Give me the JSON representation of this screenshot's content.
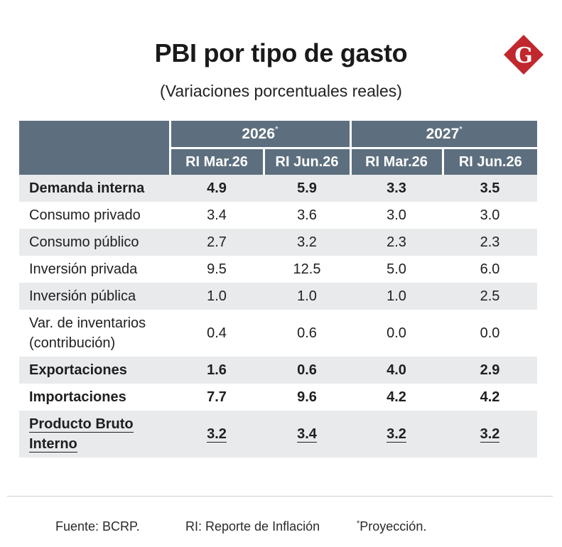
{
  "title": "PBI por tipo de gasto",
  "subtitle": "(Variaciones porcentuales reales)",
  "logo": {
    "letter": "G",
    "color": "#c0282e"
  },
  "colors": {
    "header_bg": "#5d6f7f",
    "header_text": "#ffffff",
    "shade_row": "#e8eaec",
    "text": "#1f1f1f"
  },
  "header": {
    "years": [
      {
        "label": "2026",
        "mark": "*"
      },
      {
        "label": "2027",
        "mark": "*"
      }
    ],
    "columns": [
      "RI Mar.26",
      "RI Jun.26",
      "RI Mar.26",
      "RI Jun.26"
    ]
  },
  "chart_data": {
    "type": "table",
    "title": "PBI por tipo de gasto",
    "subtitle": "(Variaciones porcentuales reales)",
    "column_groups": [
      "2026*",
      "2027*"
    ],
    "columns": [
      "RI Mar.26",
      "RI Jun.26",
      "RI Mar.26",
      "RI Jun.26"
    ],
    "rows": [
      {
        "label": "Demanda interna",
        "values": [
          "4.9",
          "5.9",
          "3.3",
          "3.5"
        ]
      },
      {
        "label": "Consumo privado",
        "values": [
          "3.4",
          "3.6",
          "3.0",
          "3.0"
        ]
      },
      {
        "label": "Consumo público",
        "values": [
          "2.7",
          "3.2",
          "2.3",
          "2.3"
        ]
      },
      {
        "label": "Inversión privada",
        "values": [
          "9.5",
          "12.5",
          "5.0",
          "6.0"
        ]
      },
      {
        "label": "Inversión pública",
        "values": [
          "1.0",
          "1.0",
          "1.0",
          "2.5"
        ]
      },
      {
        "label": [
          "Var. de inventarios",
          "(contribución)"
        ],
        "values": [
          "0.4",
          "0.6",
          "0.0",
          "0.0"
        ]
      },
      {
        "label": "Exportaciones",
        "values": [
          "1.6",
          "0.6",
          "4.0",
          "2.9"
        ]
      },
      {
        "label": "Importaciones",
        "values": [
          "7.7",
          "9.6",
          "4.2",
          "4.2"
        ]
      },
      {
        "label": [
          "Producto Bruto",
          "Interno"
        ],
        "values": [
          "3.2",
          "3.4",
          "3.2",
          "3.2"
        ]
      }
    ]
  },
  "footer": {
    "source": "Fuente: BCRP.",
    "ri_note": "RI: Reporte de Inflación",
    "mark": "*",
    "projection": "Proyección."
  }
}
